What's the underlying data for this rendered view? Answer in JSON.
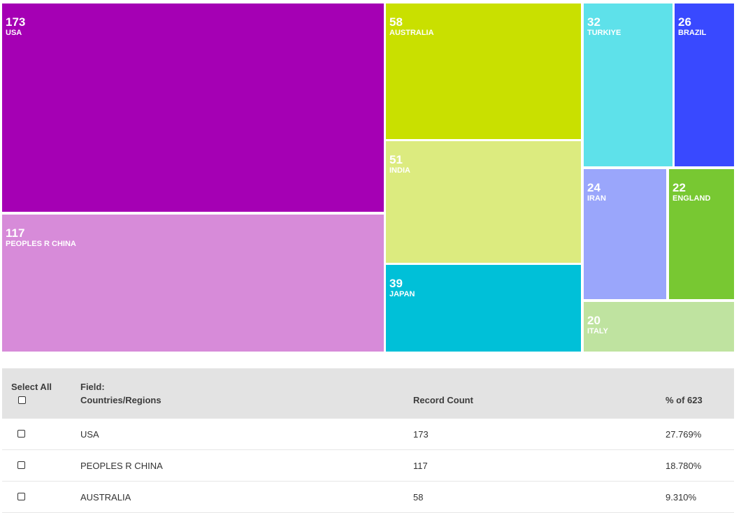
{
  "chart_data": {
    "type": "treemap",
    "items": [
      {
        "label": "USA",
        "value": 173,
        "color": "#a500b4"
      },
      {
        "label": "PEOPLES R CHINA",
        "value": 117,
        "color": "#d78bd9"
      },
      {
        "label": "AUSTRALIA",
        "value": 58,
        "color": "#c9e000"
      },
      {
        "label": "INDIA",
        "value": 51,
        "color": "#dceb7f"
      },
      {
        "label": "JAPAN",
        "value": 39,
        "color": "#00c0d8"
      },
      {
        "label": "TURKIYE",
        "value": 32,
        "color": "#5ee1ea"
      },
      {
        "label": "BRAZIL",
        "value": 26,
        "color": "#3949ff"
      },
      {
        "label": "IRAN",
        "value": 24,
        "color": "#9aa6fb"
      },
      {
        "label": "ENGLAND",
        "value": 22,
        "color": "#78c832"
      },
      {
        "label": "ITALY",
        "value": 20,
        "color": "#bfe3a0"
      }
    ]
  },
  "table": {
    "select_all_label": "Select All",
    "field_label": "Field:",
    "field_name": "Countries/Regions",
    "record_count_header": "Record Count",
    "percent_header": "% of 623",
    "rows": [
      {
        "name": "USA",
        "count": "173",
        "percent": "27.769%"
      },
      {
        "name": "PEOPLES R CHINA",
        "count": "117",
        "percent": "18.780%"
      },
      {
        "name": "AUSTRALIA",
        "count": "58",
        "percent": "9.310%"
      }
    ]
  }
}
